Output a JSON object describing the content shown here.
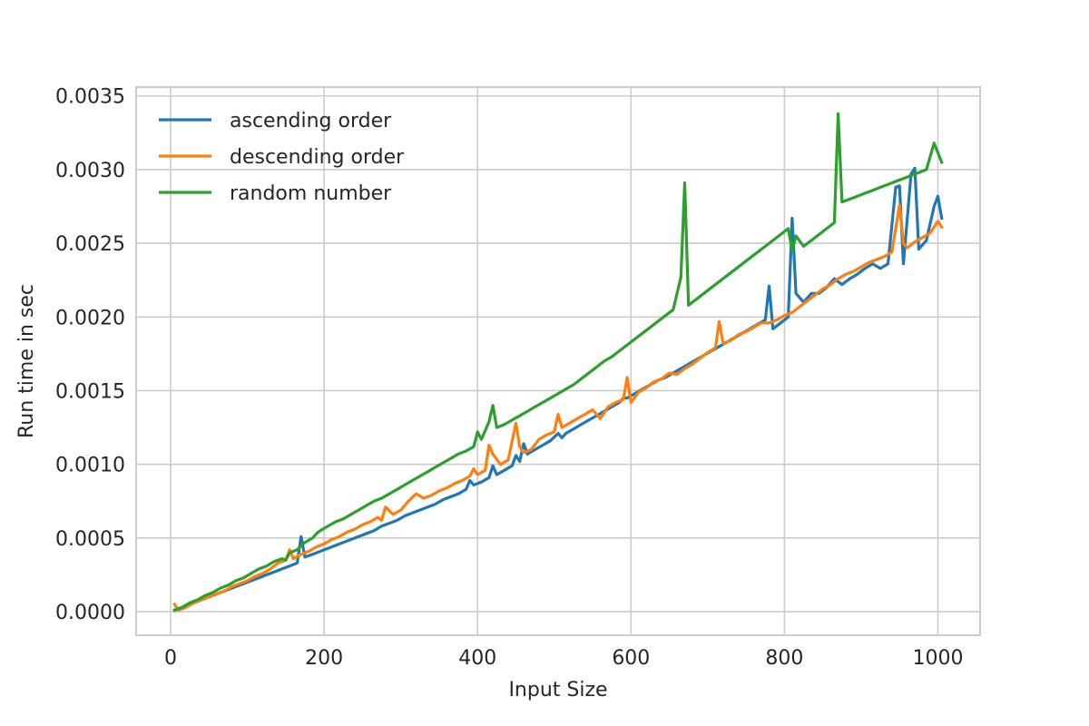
{
  "chart_data": {
    "type": "line",
    "xlabel": "Input Size",
    "ylabel": "Run time in sec",
    "xlim": [
      -45,
      1055
    ],
    "ylim": [
      -0.00016,
      0.00356
    ],
    "xticks": [
      0,
      200,
      400,
      600,
      800,
      1000
    ],
    "xtick_labels": [
      "0",
      "200",
      "400",
      "600",
      "800",
      "1000"
    ],
    "yticks": [
      0.0,
      0.0005,
      0.001,
      0.0015,
      0.002,
      0.0025,
      0.003,
      0.0035
    ],
    "ytick_labels": [
      "0.0000",
      "0.0005",
      "0.0010",
      "0.0015",
      "0.0020",
      "0.0025",
      "0.0030",
      "0.0035"
    ],
    "grid": true,
    "legend_position": "top-left",
    "series": [
      {
        "name": "ascending order",
        "color": "#1f77b4",
        "x": [
          5,
          15,
          25,
          35,
          45,
          55,
          65,
          75,
          85,
          95,
          105,
          115,
          125,
          135,
          145,
          155,
          165,
          170,
          175,
          185,
          195,
          205,
          215,
          225,
          235,
          245,
          255,
          265,
          275,
          285,
          295,
          305,
          315,
          325,
          335,
          345,
          355,
          365,
          375,
          385,
          390,
          395,
          405,
          415,
          420,
          425,
          435,
          445,
          450,
          455,
          460,
          465,
          475,
          485,
          495,
          505,
          510,
          515,
          525,
          535,
          545,
          555,
          565,
          575,
          585,
          590,
          595,
          605,
          615,
          625,
          635,
          645,
          655,
          665,
          675,
          685,
          695,
          705,
          715,
          725,
          735,
          745,
          755,
          765,
          775,
          780,
          785,
          795,
          805,
          810,
          815,
          825,
          835,
          845,
          855,
          865,
          875,
          885,
          895,
          905,
          915,
          925,
          935,
          945,
          950,
          955,
          965,
          970,
          975,
          985,
          995,
          1000,
          1005
        ],
        "y": [
          1e-05,
          3e-05,
          5e-05,
          7e-05,
          9e-05,
          0.00011,
          0.00013,
          0.00015,
          0.00017,
          0.00019,
          0.00021,
          0.00023,
          0.00025,
          0.00027,
          0.00029,
          0.00031,
          0.00033,
          0.00051,
          0.00037,
          0.00039,
          0.00041,
          0.00043,
          0.00045,
          0.00047,
          0.00049,
          0.00051,
          0.00053,
          0.00055,
          0.00058,
          0.0006,
          0.00062,
          0.00065,
          0.00067,
          0.00069,
          0.00071,
          0.00073,
          0.00076,
          0.00078,
          0.0008,
          0.00083,
          0.00089,
          0.00086,
          0.00088,
          0.00091,
          0.00099,
          0.00093,
          0.00096,
          0.00099,
          0.00106,
          0.00102,
          0.00114,
          0.00107,
          0.0011,
          0.00113,
          0.00116,
          0.00121,
          0.00118,
          0.00121,
          0.00124,
          0.00127,
          0.0013,
          0.00133,
          0.00136,
          0.00139,
          0.00142,
          0.00145,
          0.00145,
          0.00148,
          0.00151,
          0.00154,
          0.00157,
          0.00159,
          0.00162,
          0.00165,
          0.00168,
          0.00171,
          0.00174,
          0.00177,
          0.0018,
          0.00183,
          0.00186,
          0.00189,
          0.00192,
          0.00195,
          0.00198,
          0.00221,
          0.00192,
          0.00196,
          0.002,
          0.00267,
          0.00216,
          0.0021,
          0.00216,
          0.00216,
          0.0022,
          0.00226,
          0.00222,
          0.00226,
          0.00229,
          0.00233,
          0.00236,
          0.00233,
          0.00236,
          0.00288,
          0.00289,
          0.00236,
          0.00297,
          0.00301,
          0.00246,
          0.00252,
          0.00275,
          0.00282,
          0.00267
        ]
      },
      {
        "name": "descending order",
        "color": "#ff7f0e",
        "x": [
          5,
          10,
          20,
          30,
          40,
          50,
          60,
          70,
          80,
          90,
          100,
          110,
          120,
          130,
          140,
          150,
          155,
          160,
          170,
          180,
          190,
          200,
          210,
          220,
          230,
          240,
          250,
          260,
          270,
          275,
          280,
          290,
          300,
          305,
          310,
          320,
          330,
          340,
          350,
          360,
          370,
          380,
          390,
          395,
          400,
          410,
          415,
          420,
          430,
          440,
          450,
          455,
          460,
          470,
          480,
          490,
          500,
          505,
          510,
          520,
          530,
          540,
          550,
          560,
          570,
          580,
          590,
          595,
          600,
          610,
          620,
          630,
          640,
          650,
          660,
          670,
          680,
          690,
          700,
          710,
          715,
          720,
          730,
          740,
          750,
          760,
          770,
          780,
          790,
          800,
          810,
          820,
          830,
          840,
          850,
          860,
          870,
          880,
          890,
          900,
          910,
          920,
          930,
          940,
          950,
          955,
          960,
          970,
          980,
          990,
          1000,
          1005
        ],
        "y": [
          5e-05,
          1e-05,
          3e-05,
          6e-05,
          8e-05,
          0.0001,
          0.00012,
          0.00014,
          0.00017,
          0.00019,
          0.00021,
          0.00024,
          0.00026,
          0.00029,
          0.00033,
          0.00035,
          0.00042,
          0.00036,
          0.00039,
          0.00041,
          0.00044,
          0.00046,
          0.00049,
          0.00051,
          0.00054,
          0.00056,
          0.00059,
          0.00061,
          0.00064,
          0.00062,
          0.00071,
          0.00066,
          0.00069,
          0.00072,
          0.00075,
          0.0008,
          0.00077,
          0.00079,
          0.00082,
          0.00084,
          0.00087,
          0.00089,
          0.00092,
          0.00097,
          0.00093,
          0.00096,
          0.00113,
          0.00107,
          0.001,
          0.00103,
          0.00128,
          0.00112,
          0.00108,
          0.0011,
          0.00117,
          0.0012,
          0.00122,
          0.00134,
          0.00125,
          0.00128,
          0.00131,
          0.00134,
          0.00137,
          0.00131,
          0.00139,
          0.00142,
          0.00144,
          0.00159,
          0.00142,
          0.00149,
          0.00152,
          0.00156,
          0.00158,
          0.00162,
          0.00161,
          0.00165,
          0.00168,
          0.00172,
          0.00176,
          0.00179,
          0.00197,
          0.00182,
          0.00184,
          0.00188,
          0.0019,
          0.00193,
          0.00196,
          0.00196,
          0.00198,
          0.00201,
          0.00203,
          0.00207,
          0.00211,
          0.00215,
          0.00219,
          0.00222,
          0.00226,
          0.00229,
          0.00231,
          0.00234,
          0.00237,
          0.00239,
          0.00241,
          0.00244,
          0.00276,
          0.0025,
          0.00247,
          0.00251,
          0.00254,
          0.00257,
          0.00265,
          0.00261
        ]
      },
      {
        "name": "random number",
        "color": "#2ca02c",
        "x": [
          5,
          15,
          25,
          35,
          45,
          55,
          65,
          75,
          85,
          95,
          105,
          115,
          125,
          135,
          145,
          150,
          155,
          165,
          170,
          175,
          185,
          190,
          195,
          205,
          215,
          225,
          235,
          245,
          255,
          265,
          275,
          285,
          295,
          305,
          315,
          325,
          335,
          345,
          355,
          365,
          375,
          385,
          395,
          400,
          405,
          415,
          420,
          425,
          435,
          445,
          455,
          465,
          475,
          485,
          495,
          505,
          515,
          525,
          535,
          545,
          555,
          565,
          575,
          585,
          595,
          605,
          615,
          625,
          635,
          645,
          655,
          665,
          670,
          675,
          685,
          695,
          705,
          715,
          725,
          735,
          745,
          755,
          765,
          775,
          785,
          795,
          805,
          810,
          815,
          825,
          835,
          845,
          855,
          865,
          870,
          875,
          885,
          895,
          905,
          915,
          925,
          935,
          945,
          955,
          965,
          975,
          985,
          995,
          1005
        ],
        "y": [
          1e-05,
          3e-05,
          6e-05,
          8e-05,
          0.00011,
          0.00013,
          0.00016,
          0.00018,
          0.00021,
          0.00023,
          0.00026,
          0.00029,
          0.00031,
          0.00034,
          0.00036,
          0.00035,
          0.0004,
          0.00042,
          0.00045,
          0.00047,
          0.0005,
          0.00053,
          0.00055,
          0.00058,
          0.00061,
          0.00063,
          0.00066,
          0.00069,
          0.00072,
          0.00075,
          0.00077,
          0.0008,
          0.00083,
          0.00086,
          0.00089,
          0.00092,
          0.00095,
          0.00098,
          0.00101,
          0.00104,
          0.00107,
          0.00109,
          0.00112,
          0.00122,
          0.00117,
          0.00129,
          0.0014,
          0.00125,
          0.00127,
          0.0013,
          0.00133,
          0.00136,
          0.00139,
          0.00142,
          0.00145,
          0.00148,
          0.00151,
          0.00154,
          0.00158,
          0.00162,
          0.00166,
          0.0017,
          0.00173,
          0.00177,
          0.00181,
          0.00185,
          0.00189,
          0.00193,
          0.00197,
          0.00201,
          0.00205,
          0.00227,
          0.00291,
          0.00208,
          0.00212,
          0.00216,
          0.0022,
          0.00224,
          0.00228,
          0.00232,
          0.00236,
          0.0024,
          0.00244,
          0.00248,
          0.00252,
          0.00256,
          0.0026,
          0.00245,
          0.00255,
          0.00248,
          0.00252,
          0.00256,
          0.0026,
          0.00264,
          0.00338,
          0.00278,
          0.0028,
          0.00282,
          0.00284,
          0.00286,
          0.00288,
          0.0029,
          0.00292,
          0.00294,
          0.00296,
          0.00298,
          0.003,
          0.00318,
          0.00305
        ]
      }
    ]
  }
}
